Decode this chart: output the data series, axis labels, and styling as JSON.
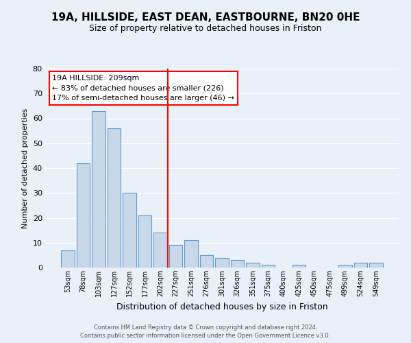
{
  "title1": "19A, HILLSIDE, EAST DEAN, EASTBOURNE, BN20 0HE",
  "title2": "Size of property relative to detached houses in Friston",
  "xlabel": "Distribution of detached houses by size in Friston",
  "ylabel": "Number of detached properties",
  "bar_labels": [
    "53sqm",
    "78sqm",
    "103sqm",
    "127sqm",
    "152sqm",
    "177sqm",
    "202sqm",
    "227sqm",
    "251sqm",
    "276sqm",
    "301sqm",
    "326sqm",
    "351sqm",
    "375sqm",
    "400sqm",
    "425sqm",
    "450sqm",
    "475sqm",
    "499sqm",
    "524sqm",
    "549sqm"
  ],
  "bar_values": [
    7,
    42,
    63,
    56,
    30,
    21,
    14,
    9,
    11,
    5,
    4,
    3,
    2,
    1,
    0,
    1,
    0,
    0,
    1,
    2,
    2
  ],
  "bar_color_fill": "#c8d8e8",
  "bar_color_edge": "#5b9bd5",
  "vline_x_index": 7,
  "vline_color": "red",
  "annotation_title": "19A HILLSIDE: 209sqm",
  "annotation_line1": "← 83% of detached houses are smaller (226)",
  "annotation_line2": "17% of semi-detached houses are larger (46) →",
  "annotation_box_color": "white",
  "annotation_box_edge": "red",
  "ylim": [
    0,
    80
  ],
  "yticks": [
    0,
    10,
    20,
    30,
    40,
    50,
    60,
    70,
    80
  ],
  "bg_color": "#eaf0f8",
  "grid_color": "white",
  "footer1": "Contains HM Land Registry data © Crown copyright and database right 2024.",
  "footer2": "Contains public sector information licensed under the Open Government Licence v3.0."
}
